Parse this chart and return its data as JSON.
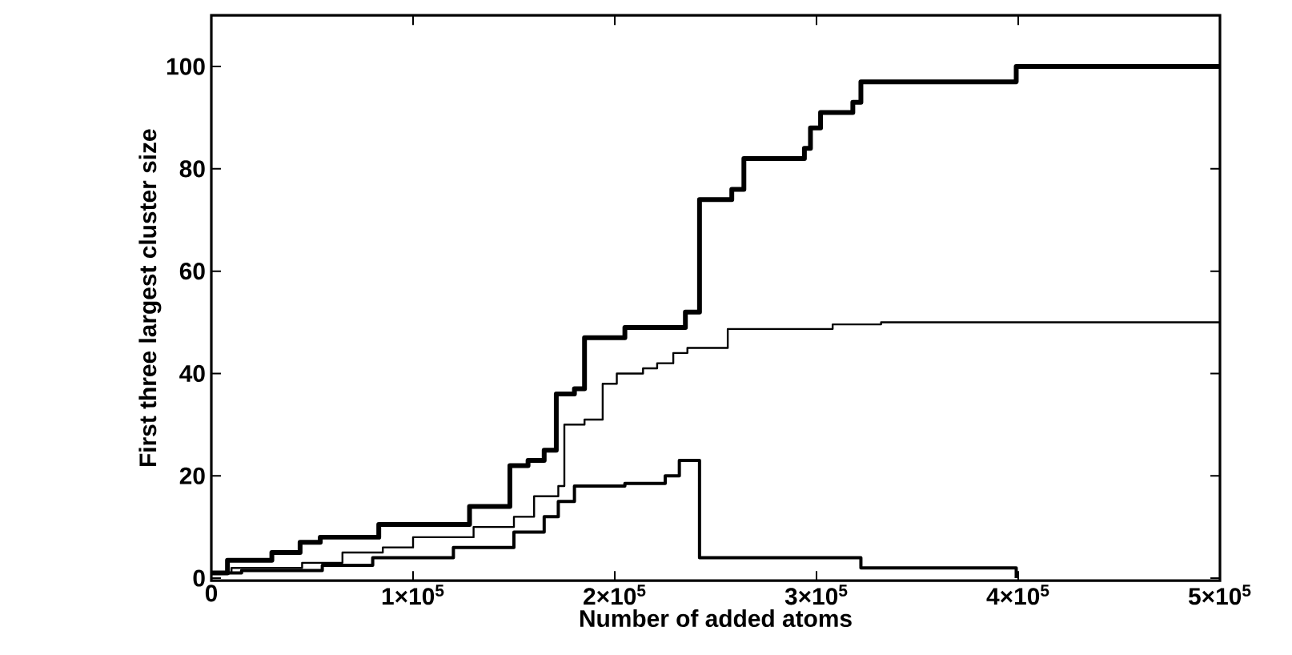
{
  "chart_data": {
    "type": "step",
    "xlabel": "Number of added atoms",
    "ylabel": "First three largest cluster size",
    "xlim": [
      0,
      500000
    ],
    "ylim": [
      -0.5,
      110
    ],
    "xticks": [
      0,
      {
        "value": 100000,
        "label": "1×10$^{5}$"
      },
      {
        "value": 200000,
        "label": "2×10$^{5}$"
      },
      {
        "value": 300000,
        "label": "3×10$^{5}$"
      },
      {
        "value": 400000,
        "label": "4×10$^{5}$"
      },
      {
        "value": 500000,
        "label": "5×10$^{5}$"
      }
    ],
    "yticks": [
      0,
      20,
      40,
      60,
      80,
      100
    ],
    "grid": false,
    "marker": "none",
    "line_style": "solid",
    "series": [
      {
        "color": "#000000",
        "x": [
          0,
          8000,
          30000,
          44000,
          54000,
          83000,
          128000,
          148000,
          157000,
          165000,
          171000,
          180000,
          185000,
          205000,
          235000,
          242000,
          258000,
          264000,
          294000,
          297000,
          302000,
          318000,
          322000,
          399000,
          500000
        ],
        "values": [
          1,
          3.5,
          5,
          7,
          8,
          10.5,
          14,
          22,
          23,
          25,
          36,
          37,
          47,
          49,
          52,
          74,
          76,
          82,
          84,
          88,
          91,
          93,
          97,
          100,
          100
        ]
      },
      {
        "color": "#000000",
        "x": [
          0,
          10000,
          45000,
          65000,
          85000,
          100000,
          130000,
          150000,
          160000,
          172000,
          175000,
          185000,
          194000,
          201000,
          214000,
          221000,
          229000,
          236000,
          256000,
          308000,
          332000,
          500000
        ],
        "values": [
          1,
          2,
          3,
          5,
          6,
          8,
          10,
          12,
          16,
          18,
          30,
          31,
          38,
          40,
          41,
          42,
          44,
          45,
          48.7,
          49.6,
          50,
          50
        ]
      },
      {
        "color": "#000000",
        "x": [
          0,
          15000,
          55000,
          80000,
          120000,
          150000,
          165000,
          172000,
          180000,
          205000,
          225000,
          232000,
          242000,
          322000,
          399000
        ],
        "values": [
          1,
          1.5,
          2.5,
          4,
          6,
          9,
          12,
          15,
          18,
          18.5,
          20,
          23,
          4,
          2,
          0
        ]
      }
    ]
  }
}
